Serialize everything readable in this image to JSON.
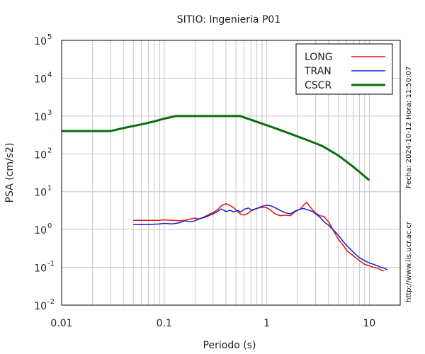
{
  "chart_data": {
    "type": "line",
    "title": "SITIO: Ingenieria P01",
    "xlabel": "Periodo (s)",
    "ylabel": "PSA (cm/s2)",
    "xscale": "log",
    "yscale": "log",
    "xlim": [
      0.01,
      20
    ],
    "ylim": [
      0.01,
      100000
    ],
    "grid": true,
    "legend_position": "top-right",
    "x_ticks": [
      {
        "value": 0.01,
        "label": "0.01"
      },
      {
        "value": 0.1,
        "label": "0.1"
      },
      {
        "value": 1,
        "label": "1"
      },
      {
        "value": 10,
        "label": "10"
      }
    ],
    "y_ticks": [
      {
        "value": 0.01,
        "base": "10",
        "exp": "-2"
      },
      {
        "value": 0.1,
        "base": "10",
        "exp": "-1"
      },
      {
        "value": 1,
        "base": "10",
        "exp": "0"
      },
      {
        "value": 10,
        "base": "10",
        "exp": "1"
      },
      {
        "value": 100,
        "base": "10",
        "exp": "2"
      },
      {
        "value": 1000,
        "base": "10",
        "exp": "3"
      },
      {
        "value": 10000,
        "base": "10",
        "exp": "4"
      },
      {
        "value": 100000,
        "base": "10",
        "exp": "5"
      }
    ],
    "series": [
      {
        "name": "LONG",
        "color": "#e01010",
        "width": 1.5,
        "points": [
          [
            0.05,
            1.75
          ],
          [
            0.07,
            1.75
          ],
          [
            0.09,
            1.75
          ],
          [
            0.1,
            1.8
          ],
          [
            0.12,
            1.75
          ],
          [
            0.14,
            1.7
          ],
          [
            0.16,
            1.75
          ],
          [
            0.18,
            1.9
          ],
          [
            0.2,
            2.0
          ],
          [
            0.22,
            1.9
          ],
          [
            0.25,
            2.2
          ],
          [
            0.28,
            2.6
          ],
          [
            0.3,
            2.8
          ],
          [
            0.33,
            3.3
          ],
          [
            0.36,
            4.2
          ],
          [
            0.4,
            4.8
          ],
          [
            0.44,
            4.3
          ],
          [
            0.48,
            3.7
          ],
          [
            0.52,
            3.0
          ],
          [
            0.56,
            2.5
          ],
          [
            0.6,
            2.4
          ],
          [
            0.66,
            2.7
          ],
          [
            0.72,
            3.3
          ],
          [
            0.8,
            3.6
          ],
          [
            0.9,
            3.9
          ],
          [
            1.0,
            3.8
          ],
          [
            1.1,
            3.2
          ],
          [
            1.2,
            2.6
          ],
          [
            1.35,
            2.3
          ],
          [
            1.5,
            2.4
          ],
          [
            1.7,
            2.3
          ],
          [
            1.9,
            3.0
          ],
          [
            2.1,
            3.4
          ],
          [
            2.3,
            4.5
          ],
          [
            2.45,
            5.2
          ],
          [
            2.6,
            4.2
          ],
          [
            2.8,
            3.3
          ],
          [
            3.0,
            2.7
          ],
          [
            3.3,
            2.3
          ],
          [
            3.6,
            2.2
          ],
          [
            4.0,
            1.6
          ],
          [
            4.5,
            0.9
          ],
          [
            5.0,
            0.55
          ],
          [
            5.5,
            0.4
          ],
          [
            6.0,
            0.28
          ],
          [
            7.0,
            0.2
          ],
          [
            8.0,
            0.15
          ],
          [
            9.0,
            0.12
          ],
          [
            10.0,
            0.11
          ],
          [
            11.0,
            0.1
          ],
          [
            12.0,
            0.095
          ],
          [
            13.0,
            0.085
          ],
          [
            14.0,
            0.08
          ]
        ]
      },
      {
        "name": "TRAN",
        "color": "#1020d0",
        "width": 1.5,
        "points": [
          [
            0.05,
            1.35
          ],
          [
            0.07,
            1.35
          ],
          [
            0.09,
            1.4
          ],
          [
            0.1,
            1.45
          ],
          [
            0.12,
            1.4
          ],
          [
            0.14,
            1.5
          ],
          [
            0.16,
            1.7
          ],
          [
            0.18,
            1.6
          ],
          [
            0.2,
            1.7
          ],
          [
            0.22,
            1.9
          ],
          [
            0.25,
            2.1
          ],
          [
            0.28,
            2.4
          ],
          [
            0.3,
            2.6
          ],
          [
            0.33,
            3.0
          ],
          [
            0.36,
            3.5
          ],
          [
            0.4,
            3.0
          ],
          [
            0.44,
            3.2
          ],
          [
            0.48,
            2.9
          ],
          [
            0.52,
            3.2
          ],
          [
            0.56,
            2.9
          ],
          [
            0.6,
            3.4
          ],
          [
            0.66,
            3.7
          ],
          [
            0.72,
            3.2
          ],
          [
            0.8,
            3.6
          ],
          [
            0.9,
            4.1
          ],
          [
            1.0,
            4.4
          ],
          [
            1.1,
            4.2
          ],
          [
            1.2,
            3.8
          ],
          [
            1.35,
            3.2
          ],
          [
            1.5,
            2.8
          ],
          [
            1.7,
            2.6
          ],
          [
            1.9,
            3.1
          ],
          [
            2.1,
            3.4
          ],
          [
            2.3,
            3.6
          ],
          [
            2.5,
            3.3
          ],
          [
            2.8,
            3.0
          ],
          [
            3.0,
            2.6
          ],
          [
            3.3,
            2.1
          ],
          [
            3.6,
            1.6
          ],
          [
            4.0,
            1.3
          ],
          [
            4.5,
            0.95
          ],
          [
            5.0,
            0.7
          ],
          [
            5.5,
            0.5
          ],
          [
            6.0,
            0.38
          ],
          [
            7.0,
            0.25
          ],
          [
            8.0,
            0.18
          ],
          [
            9.0,
            0.15
          ],
          [
            10.0,
            0.13
          ],
          [
            11.0,
            0.12
          ],
          [
            12.0,
            0.11
          ],
          [
            13.0,
            0.1
          ],
          [
            14.0,
            0.095
          ],
          [
            15.0,
            0.085
          ]
        ]
      },
      {
        "name": "CSCR",
        "color": "#0b6e0b",
        "width": 3,
        "points": [
          [
            0.01,
            400
          ],
          [
            0.03,
            400
          ],
          [
            0.04,
            480
          ],
          [
            0.06,
            600
          ],
          [
            0.08,
            720
          ],
          [
            0.1,
            850
          ],
          [
            0.13,
            1000
          ],
          [
            0.2,
            1000
          ],
          [
            0.3,
            1000
          ],
          [
            0.4,
            1000
          ],
          [
            0.55,
            1000
          ],
          [
            0.8,
            700
          ],
          [
            1.2,
            480
          ],
          [
            1.8,
            320
          ],
          [
            2.5,
            230
          ],
          [
            3.5,
            160
          ],
          [
            5,
            90
          ],
          [
            7,
            45
          ],
          [
            10,
            20
          ]
        ]
      }
    ]
  },
  "side_text": {
    "date": "Fecha: 2024-10-12 Hora: 11:50:07",
    "url": "http://www.lis.ucr.ac.cr"
  }
}
